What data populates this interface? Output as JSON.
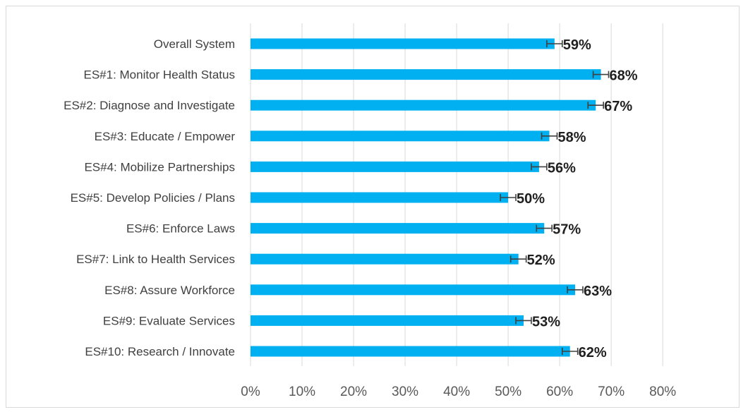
{
  "chart_data": {
    "type": "bar",
    "orientation": "horizontal",
    "categories": [
      "Overall System",
      "ES#1: Monitor Health Status",
      "ES#2: Diagnose and Investigate",
      "ES#3: Educate / Empower",
      "ES#4: Mobilize Partnerships",
      "ES#5: Develop Policies / Plans",
      "ES#6: Enforce Laws",
      "ES#7: Link to Health Services",
      "ES#8: Assure Workforce",
      "ES#9: Evaluate Services",
      "ES#10: Research / Innovate"
    ],
    "values": [
      59,
      68,
      67,
      58,
      56,
      50,
      57,
      52,
      63,
      53,
      62
    ],
    "value_labels": [
      "59%",
      "68%",
      "67%",
      "58%",
      "56%",
      "50%",
      "57%",
      "52%",
      "63%",
      "53%",
      "62%"
    ],
    "error": [
      1.5,
      1.5,
      1.5,
      1.5,
      1.5,
      1.5,
      1.5,
      1.5,
      1.5,
      1.5,
      1.5
    ],
    "xlim": [
      0,
      80
    ],
    "xticks": [
      "0%",
      "10%",
      "20%",
      "30%",
      "40%",
      "50%",
      "60%",
      "70%",
      "80%"
    ],
    "title": "",
    "xlabel": "",
    "ylabel": "",
    "grid": "vertical",
    "legend": "none",
    "colors": {
      "bar": "#00B0F0",
      "error_bar": "#404040",
      "grid": "#d9d9d9"
    }
  }
}
